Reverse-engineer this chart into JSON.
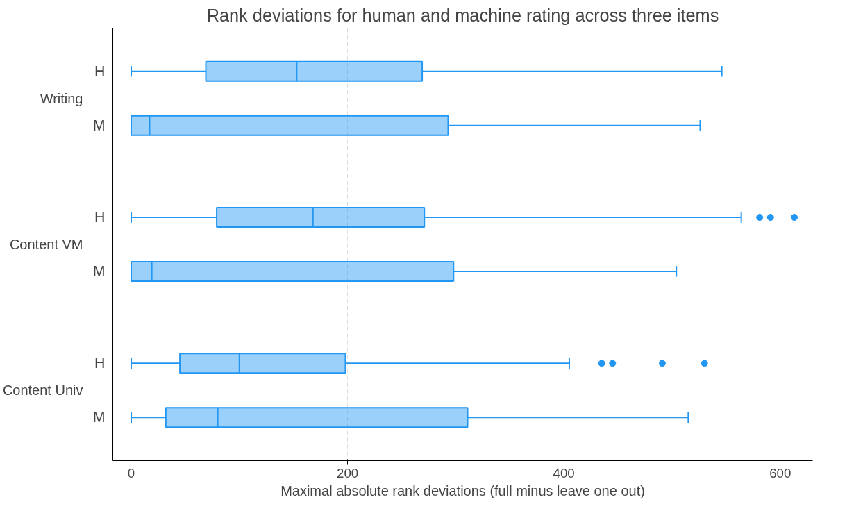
{
  "chart_data": {
    "type": "box",
    "orientation": "horizontal",
    "title": "Rank deviations for human and machine rating across three items",
    "xlabel": "Maximal absolute rank deviations (full minus leave one out)",
    "categories": [
      "H",
      "M",
      "H",
      "M",
      "H",
      "M"
    ],
    "annotations": [
      "Writing",
      "Content VM",
      "Content Univ"
    ],
    "series": [
      {
        "color": "#2196f3",
        "boxes": [
          {
            "low": 0,
            "q1": 69,
            "median": 153,
            "q3": 269,
            "high": 546
          },
          {
            "low": 0,
            "q1": 0,
            "median": 17,
            "q3": 293,
            "high": 526
          },
          {
            "low": 0,
            "q1": 79,
            "median": 168,
            "q3": 271,
            "high": 564,
            "outliers": [
              581,
              591,
              613
            ]
          },
          {
            "low": 0,
            "q1": 0,
            "median": 19,
            "q3": 298,
            "high": 504
          },
          {
            "low": 0,
            "q1": 45,
            "median": 100,
            "q3": 198,
            "high": 405,
            "outliers": [
              435,
              445,
              491,
              530
            ]
          },
          {
            "low": 0,
            "q1": 32,
            "median": 80,
            "q3": 311,
            "high": 515
          }
        ]
      }
    ],
    "xlim": [
      -17,
      630
    ],
    "xticks": [
      0,
      200,
      400,
      600
    ],
    "grid": "x"
  }
}
